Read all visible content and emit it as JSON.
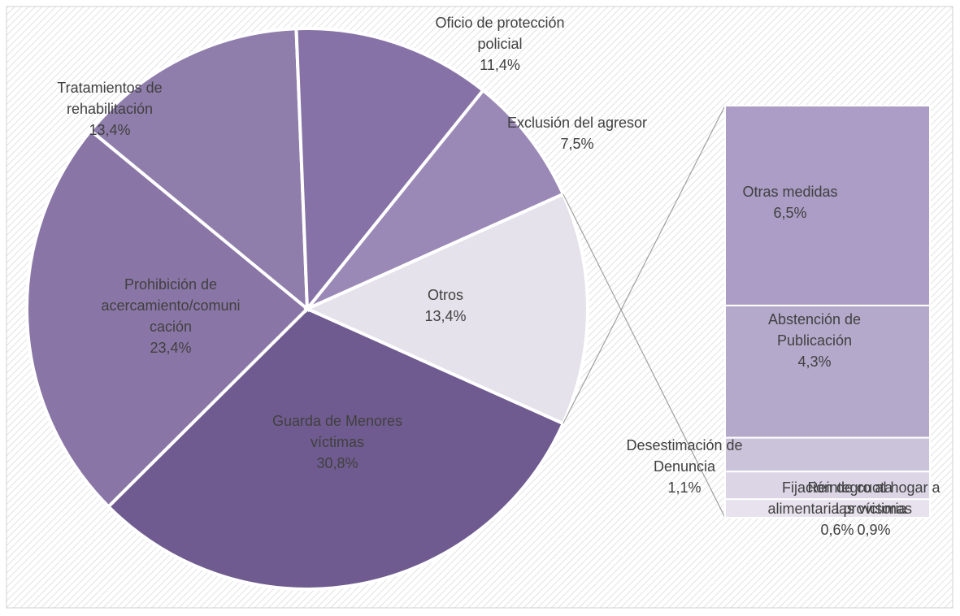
{
  "chart_data": {
    "type": "pie-of-bar",
    "categories": [
      "Guarda de Menores víctimas",
      "Prohibición de acercamiento/comunicación",
      "Tratamientos de rehabilitación",
      "Oficio de protección policial",
      "Exclusión del agresor",
      "Otros"
    ],
    "values": [
      30.8,
      23.4,
      13.4,
      11.4,
      7.5,
      13.4
    ],
    "value_labels": [
      "30,8%",
      "23,4%",
      "13,4%",
      "11,4%",
      "7,5%",
      "13,4%"
    ],
    "colors": [
      "#6f5b8f",
      "#8a76a6",
      "#8f7dab",
      "#8672a6",
      "#9a88b6",
      "#e5e2eb"
    ],
    "secondary": {
      "categories": [
        "Otras medidas",
        "Abstención de Publicación",
        "Desestimación de Denuncia",
        "Reintegro al hogar a las víctimas",
        "Fijación de cuota alimentaria provisoria"
      ],
      "values": [
        6.5,
        4.3,
        1.1,
        0.9,
        0.6
      ],
      "value_labels": [
        "6,5%",
        "4,3%",
        "1,1%",
        "0,9%",
        "0,6%"
      ],
      "colors": [
        "#ab9dc5",
        "#b5a9cb",
        "#cbc3da",
        "#dbd5e5",
        "#e7e2ed"
      ]
    }
  }
}
